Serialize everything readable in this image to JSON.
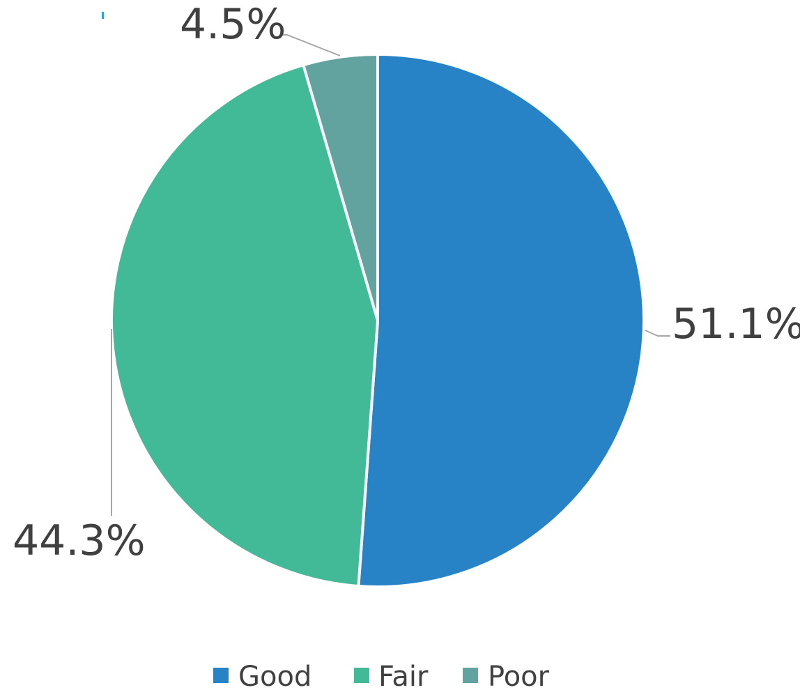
{
  "chart_data": {
    "type": "pie",
    "categories": [
      "Good",
      "Fair",
      "Poor"
    ],
    "values": [
      51.1,
      44.3,
      4.5
    ],
    "data_labels": [
      "51.1%",
      "44.3%",
      "4.5%"
    ],
    "colors": [
      "#2883C6",
      "#43BA97",
      "#62A39F"
    ],
    "legend": {
      "position": "bottom",
      "entries": [
        "Good",
        "Fair",
        "Poor"
      ]
    }
  }
}
